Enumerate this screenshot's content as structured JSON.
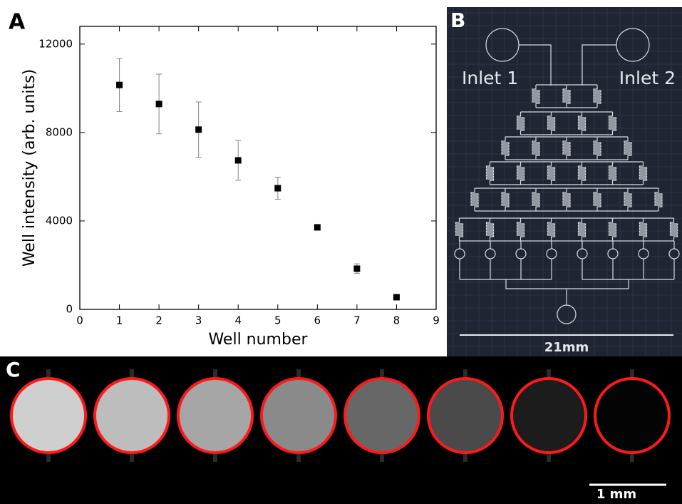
{
  "panel_labels": [
    "A",
    "B",
    "C"
  ],
  "chart_data": {
    "type": "scatter",
    "x_label": "Well number",
    "y_label": "Well intensity (arb. units)",
    "xlim": [
      0,
      9
    ],
    "xticks": [
      0,
      1,
      2,
      3,
      4,
      5,
      6,
      7,
      8,
      9
    ],
    "ylim": [
      0,
      12800
    ],
    "yticks": [
      0,
      4000,
      8000,
      12000
    ],
    "series": [
      {
        "color": "#000000",
        "x": [
          1,
          2,
          3,
          4,
          5,
          6,
          7,
          8
        ],
        "values": [
          10150,
          9290,
          8130,
          6740,
          5480,
          3710,
          1840,
          550
        ],
        "errors": [
          1200,
          1350,
          1250,
          900,
          500,
          100,
          220,
          80
        ]
      }
    ]
  },
  "diagram": {
    "inlet_labels": [
      "Inlet 1",
      "Inlet 2"
    ],
    "scale_label": "21mm"
  },
  "micrograph": {
    "scale_label": "1 mm"
  }
}
